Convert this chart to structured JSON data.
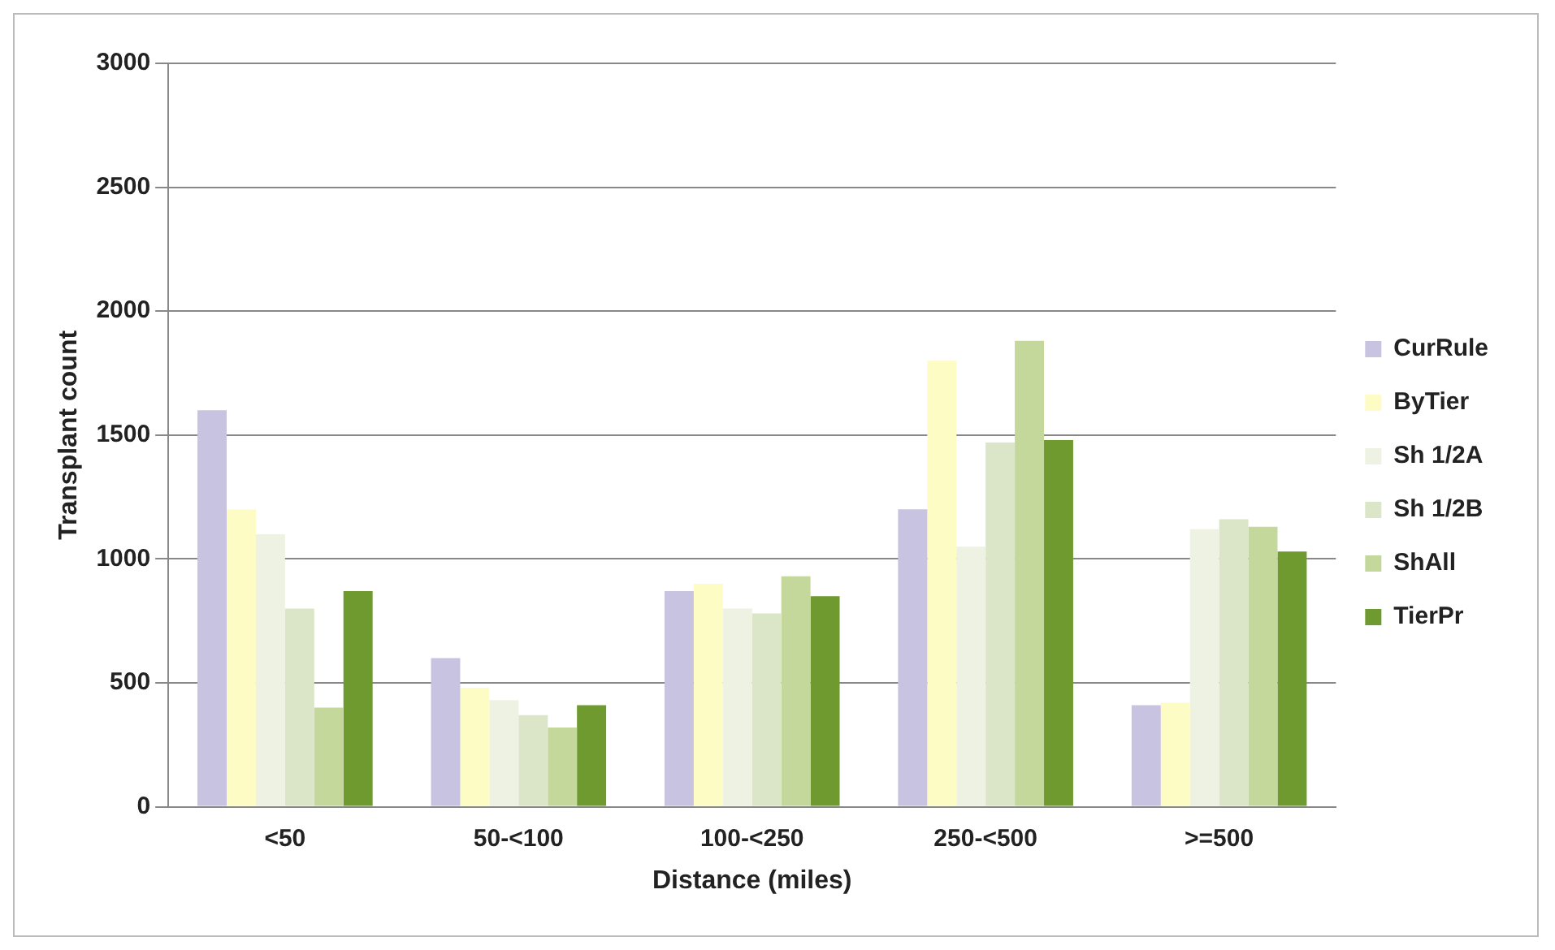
{
  "chart_data": {
    "type": "bar",
    "xlabel": "Distance (miles)",
    "ylabel": "Transplant count",
    "categories": [
      "<50",
      "50-<100",
      "100-<250",
      "250-<500",
      ">=500"
    ],
    "series": [
      {
        "name": "CurRule",
        "color": "#c8c3e0",
        "values": [
          1600,
          600,
          870,
          1200,
          410
        ]
      },
      {
        "name": "ByTier",
        "color": "#fdfcc4",
        "values": [
          1200,
          480,
          900,
          1800,
          420
        ]
      },
      {
        "name": "Sh 1/2A",
        "color": "#eef2e2",
        "values": [
          1100,
          430,
          800,
          1050,
          1120
        ]
      },
      {
        "name": "Sh 1/2B",
        "color": "#dbe6c8",
        "values": [
          800,
          370,
          780,
          1470,
          1160
        ]
      },
      {
        "name": "ShAll",
        "color": "#c4d89c",
        "values": [
          400,
          320,
          930,
          1880,
          1130
        ]
      },
      {
        "name": "TierPr",
        "color": "#6e9a30",
        "values": [
          870,
          410,
          850,
          1480,
          1030
        ]
      }
    ],
    "ylim": [
      0,
      3000
    ],
    "yticks": [
      0,
      500,
      1000,
      1500,
      2000,
      2500,
      3000
    ],
    "grid": "y",
    "legend": "right"
  }
}
